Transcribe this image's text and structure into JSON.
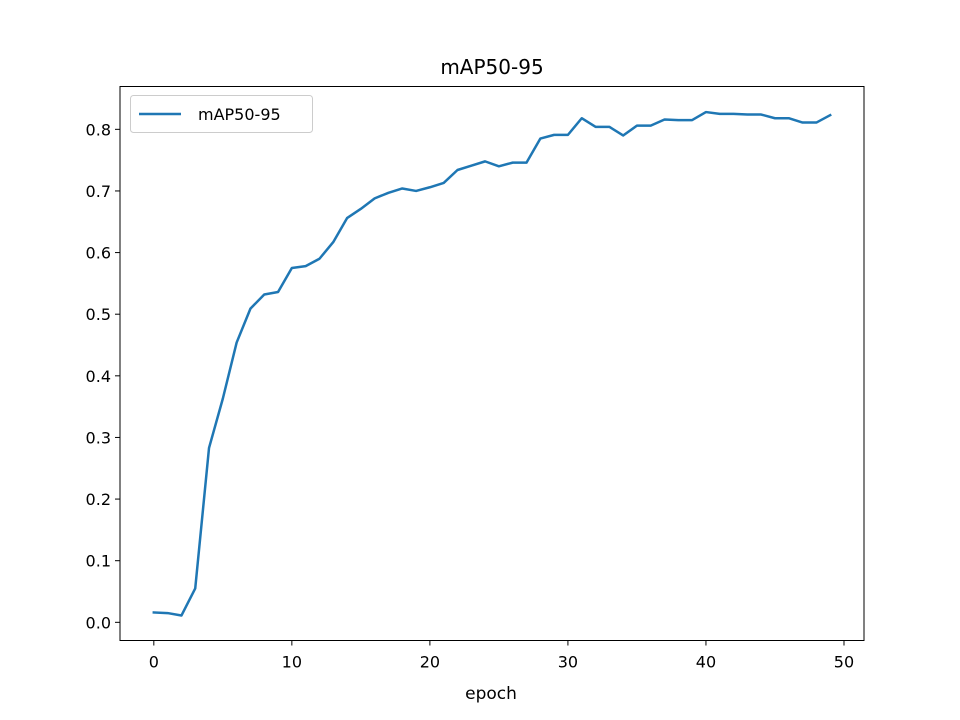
{
  "chart_data": {
    "type": "line",
    "title": "mAP50-95",
    "xlabel": "epoch",
    "ylabel": "",
    "xlim": [
      -2.45,
      51.45
    ],
    "ylim": [
      -0.0295,
      0.8695
    ],
    "xticks": [
      0,
      10,
      20,
      30,
      40,
      50
    ],
    "yticks": [
      0.0,
      0.1,
      0.2,
      0.3,
      0.4,
      0.5,
      0.6,
      0.7,
      0.8
    ],
    "ytick_labels": [
      "0.0",
      "0.1",
      "0.2",
      "0.3",
      "0.4",
      "0.5",
      "0.6",
      "0.7",
      "0.8"
    ],
    "grid": false,
    "legend": "upper-left",
    "series": [
      {
        "name": "mAP50-95",
        "color": "#1f77b4",
        "x": [
          0,
          1,
          2,
          3,
          4,
          5,
          6,
          7,
          8,
          9,
          10,
          11,
          12,
          13,
          14,
          15,
          16,
          17,
          18,
          19,
          20,
          21,
          22,
          23,
          24,
          25,
          26,
          27,
          28,
          29,
          30,
          31,
          32,
          33,
          34,
          35,
          36,
          37,
          38,
          39,
          40,
          41,
          42,
          43,
          44,
          45,
          46,
          47,
          48,
          49
        ],
        "values": [
          0.016,
          0.015,
          0.011,
          0.055,
          0.283,
          0.363,
          0.454,
          0.509,
          0.532,
          0.536,
          0.575,
          0.578,
          0.59,
          0.617,
          0.656,
          0.671,
          0.688,
          0.697,
          0.704,
          0.7,
          0.706,
          0.713,
          0.734,
          0.741,
          0.748,
          0.74,
          0.746,
          0.746,
          0.785,
          0.791,
          0.791,
          0.818,
          0.804,
          0.804,
          0.79,
          0.806,
          0.806,
          0.816,
          0.815,
          0.815,
          0.828,
          0.825,
          0.825,
          0.824,
          0.824,
          0.818,
          0.818,
          0.811,
          0.811,
          0.823
        ]
      }
    ]
  }
}
